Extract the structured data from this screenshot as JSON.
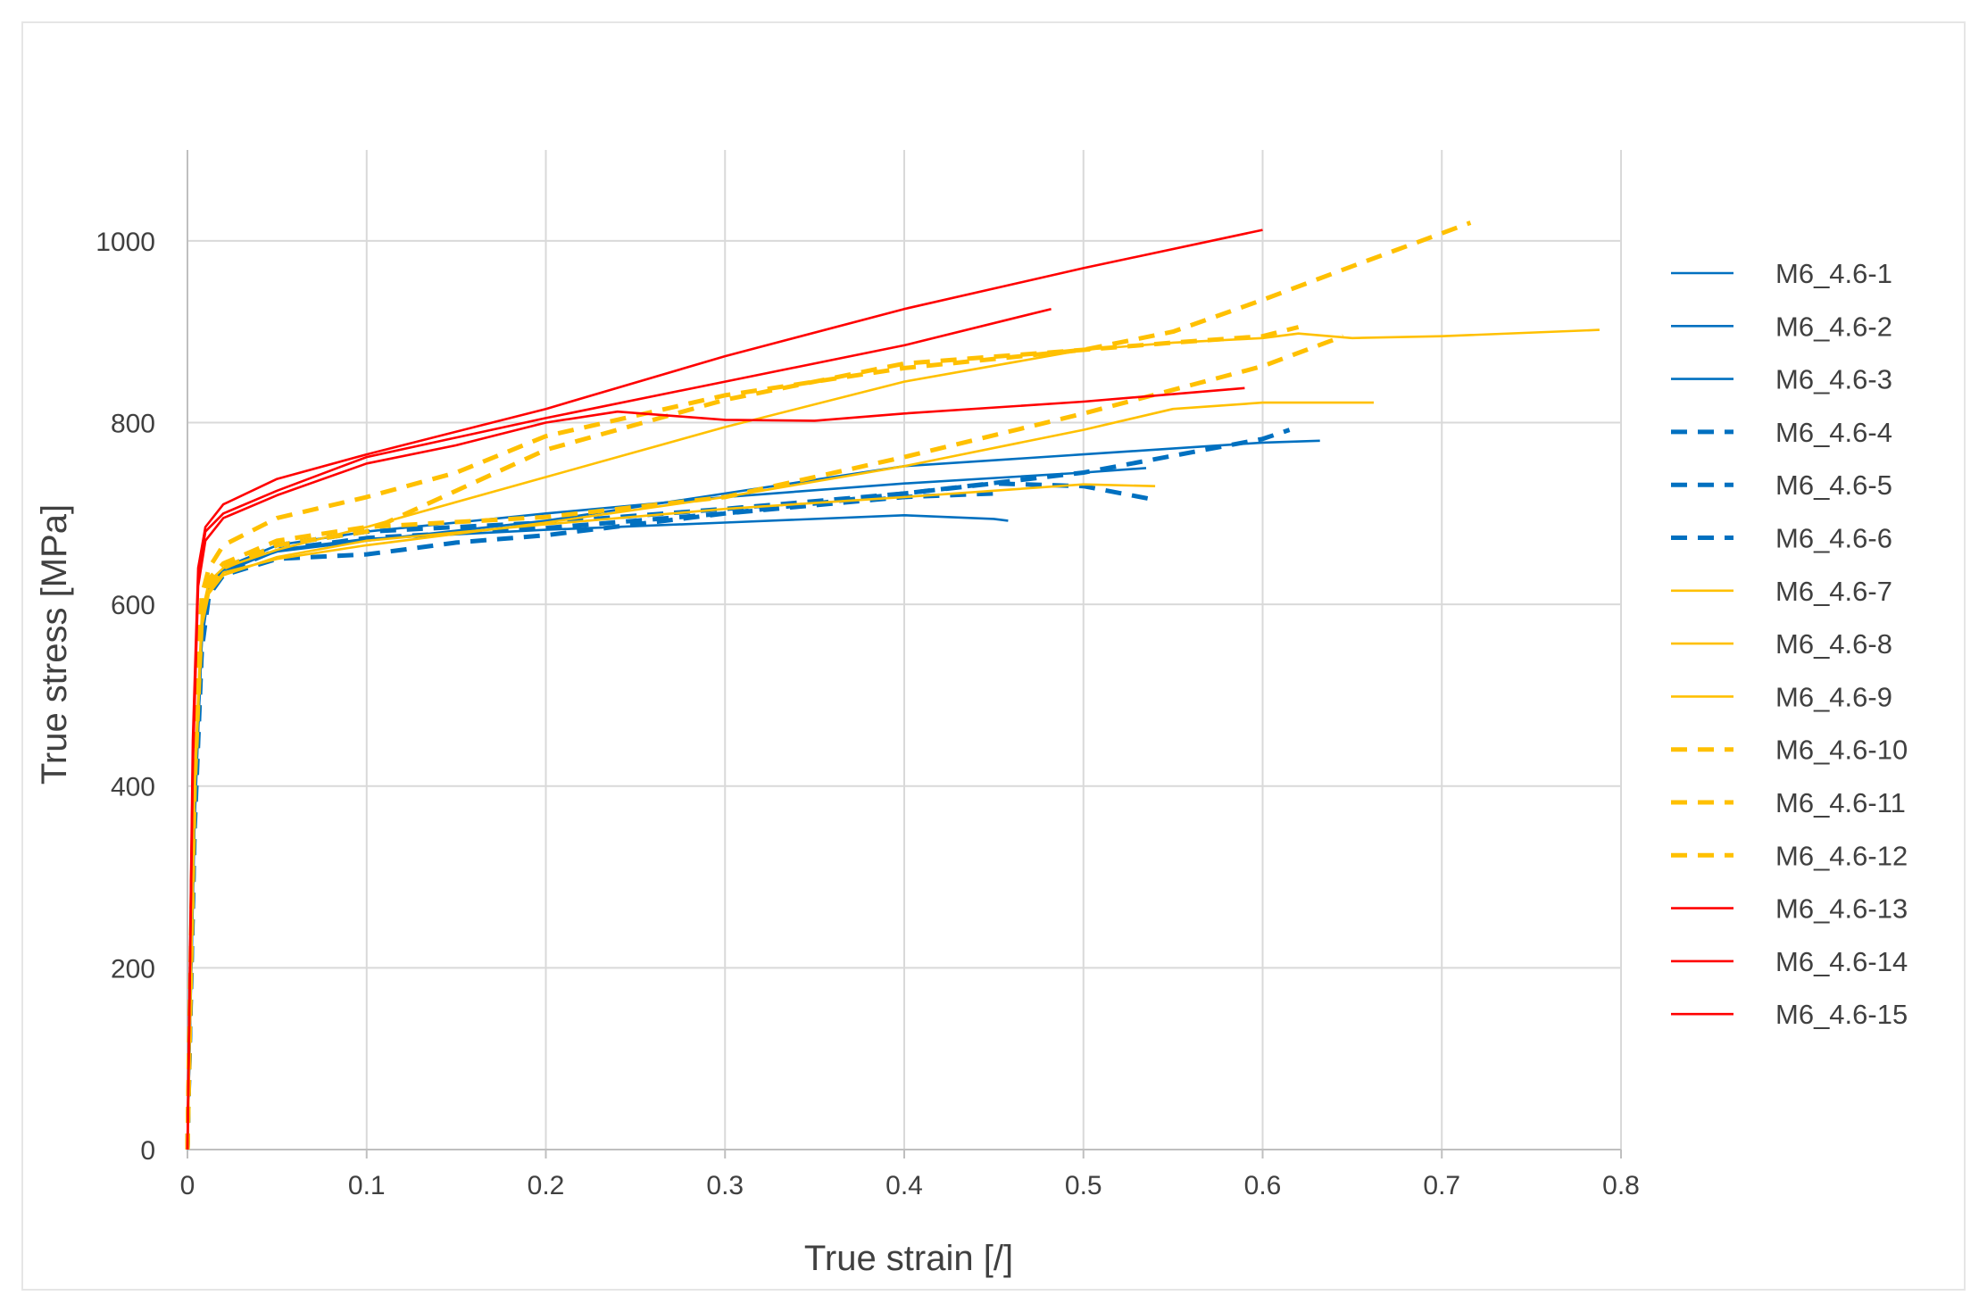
{
  "chart_data": {
    "type": "line",
    "title": "",
    "xlabel": "True strain [/]",
    "ylabel": "True stress  [MPa]",
    "xlim": [
      0,
      0.8
    ],
    "ylim": [
      0,
      1100
    ],
    "xticks": [
      0,
      0.1,
      0.2,
      0.3,
      0.4,
      0.5,
      0.6,
      0.7,
      0.8
    ],
    "xtick_labels": [
      "0",
      "0.1",
      "0.2",
      "0.3",
      "0.4",
      "0.5",
      "0.6",
      "0.7",
      "0.8"
    ],
    "yticks": [
      0,
      200,
      400,
      600,
      800,
      1000
    ],
    "ytick_labels": [
      "0",
      "200",
      "400",
      "600",
      "800",
      "1000"
    ],
    "grid": true,
    "legend_position": "right",
    "colors": {
      "blue": "#0070C0",
      "yellow": "#FFC000",
      "red": "#FF0000",
      "grid": "#d9d9d9",
      "axis": "#bfbfbf"
    },
    "series": [
      {
        "name": "M6_4.6-1",
        "color": "#0070C0",
        "dash": false,
        "x": [
          0,
          0.004,
          0.008,
          0.012,
          0.02,
          0.05,
          0.1,
          0.2,
          0.3,
          0.4,
          0.5,
          0.6,
          0.632
        ],
        "y": [
          0,
          380,
          570,
          620,
          638,
          658,
          670,
          692,
          722,
          752,
          765,
          778,
          780
        ]
      },
      {
        "name": "M6_4.6-2",
        "color": "#0070C0",
        "dash": false,
        "x": [
          0,
          0.004,
          0.008,
          0.012,
          0.02,
          0.05,
          0.1,
          0.2,
          0.3,
          0.4,
          0.45,
          0.458
        ],
        "y": [
          0,
          370,
          560,
          615,
          635,
          660,
          672,
          682,
          690,
          698,
          694,
          692
        ]
      },
      {
        "name": "M6_4.6-3",
        "color": "#0070C0",
        "dash": false,
        "x": [
          0,
          0.004,
          0.008,
          0.012,
          0.02,
          0.05,
          0.1,
          0.15,
          0.2,
          0.3,
          0.4,
          0.5,
          0.535
        ],
        "y": [
          0,
          360,
          560,
          618,
          640,
          665,
          680,
          690,
          700,
          718,
          733,
          745,
          750
        ]
      },
      {
        "name": "M6_4.6-4",
        "color": "#0070C0",
        "dash": true,
        "x": [
          0,
          0.004,
          0.008,
          0.012,
          0.02,
          0.05,
          0.1,
          0.2,
          0.3,
          0.4,
          0.5,
          0.6,
          0.615
        ],
        "y": [
          0,
          380,
          570,
          620,
          640,
          665,
          680,
          690,
          705,
          722,
          745,
          782,
          792
        ]
      },
      {
        "name": "M6_4.6-5",
        "color": "#0070C0",
        "dash": true,
        "x": [
          0,
          0.004,
          0.008,
          0.012,
          0.02,
          0.05,
          0.1,
          0.2,
          0.3,
          0.4,
          0.45,
          0.5,
          0.54
        ],
        "y": [
          0,
          360,
          555,
          612,
          635,
          660,
          673,
          684,
          700,
          722,
          733,
          730,
          715
        ]
      },
      {
        "name": "M6_4.6-6",
        "color": "#0070C0",
        "dash": true,
        "x": [
          0,
          0.004,
          0.008,
          0.012,
          0.02,
          0.05,
          0.1,
          0.12,
          0.15,
          0.2,
          0.3,
          0.4,
          0.45
        ],
        "y": [
          0,
          350,
          550,
          610,
          632,
          650,
          655,
          660,
          668,
          676,
          700,
          718,
          722
        ]
      },
      {
        "name": "M6_4.6-7",
        "color": "#FFC000",
        "dash": false,
        "x": [
          0,
          0.004,
          0.008,
          0.012,
          0.02,
          0.05,
          0.1,
          0.2,
          0.3,
          0.4,
          0.5,
          0.55,
          0.6,
          0.662
        ],
        "y": [
          0,
          400,
          580,
          615,
          635,
          650,
          665,
          690,
          718,
          752,
          792,
          815,
          822,
          822
        ]
      },
      {
        "name": "M6_4.6-8",
        "color": "#FFC000",
        "dash": false,
        "x": [
          0,
          0.004,
          0.008,
          0.012,
          0.02,
          0.05,
          0.1,
          0.2,
          0.3,
          0.4,
          0.5,
          0.55,
          0.6,
          0.62,
          0.65,
          0.7,
          0.788
        ],
        "y": [
          0,
          410,
          590,
          625,
          640,
          660,
          685,
          740,
          795,
          845,
          880,
          888,
          893,
          898,
          893,
          895,
          902
        ]
      },
      {
        "name": "M6_4.6-9",
        "color": "#FFC000",
        "dash": false,
        "x": [
          0,
          0.004,
          0.008,
          0.012,
          0.02,
          0.05,
          0.1,
          0.2,
          0.3,
          0.4,
          0.45,
          0.5,
          0.54
        ],
        "y": [
          0,
          390,
          575,
          612,
          632,
          652,
          670,
          688,
          705,
          718,
          725,
          732,
          730
        ]
      },
      {
        "name": "M6_4.6-10",
        "color": "#FFC000",
        "dash": true,
        "x": [
          0,
          0.004,
          0.008,
          0.012,
          0.02,
          0.05,
          0.1,
          0.15,
          0.2,
          0.3,
          0.4,
          0.5,
          0.55,
          0.6,
          0.65,
          0.716
        ],
        "y": [
          0,
          450,
          610,
          640,
          665,
          695,
          718,
          745,
          785,
          830,
          860,
          880,
          900,
          935,
          972,
          1020
        ]
      },
      {
        "name": "M6_4.6-11",
        "color": "#FFC000",
        "dash": true,
        "x": [
          0,
          0.004,
          0.008,
          0.012,
          0.02,
          0.05,
          0.1,
          0.2,
          0.3,
          0.4,
          0.5,
          0.6,
          0.645
        ],
        "y": [
          0,
          420,
          595,
          628,
          645,
          670,
          685,
          696,
          718,
          762,
          810,
          862,
          895
        ]
      },
      {
        "name": "M6_4.6-12",
        "color": "#FFC000",
        "dash": true,
        "x": [
          0,
          0.004,
          0.008,
          0.012,
          0.02,
          0.05,
          0.1,
          0.2,
          0.3,
          0.4,
          0.5,
          0.55,
          0.6,
          0.62
        ],
        "y": [
          0,
          400,
          585,
          620,
          640,
          665,
          680,
          770,
          825,
          865,
          880,
          888,
          895,
          905
        ]
      },
      {
        "name": "M6_4.6-13",
        "color": "#FF0000",
        "dash": false,
        "x": [
          0,
          0.003,
          0.006,
          0.01,
          0.02,
          0.05,
          0.1,
          0.2,
          0.3,
          0.4,
          0.5,
          0.6
        ],
        "y": [
          0,
          450,
          640,
          685,
          710,
          738,
          765,
          815,
          873,
          925,
          970,
          1012
        ]
      },
      {
        "name": "M6_4.6-14",
        "color": "#FF0000",
        "dash": false,
        "x": [
          0,
          0.003,
          0.006,
          0.01,
          0.02,
          0.05,
          0.1,
          0.2,
          0.3,
          0.4,
          0.482
        ],
        "y": [
          0,
          430,
          630,
          680,
          700,
          725,
          762,
          805,
          845,
          885,
          925
        ]
      },
      {
        "name": "M6_4.6-15",
        "color": "#FF0000",
        "dash": false,
        "x": [
          0,
          0.003,
          0.006,
          0.01,
          0.02,
          0.05,
          0.1,
          0.15,
          0.2,
          0.24,
          0.3,
          0.35,
          0.4,
          0.5,
          0.59
        ],
        "y": [
          0,
          420,
          620,
          670,
          695,
          720,
          755,
          775,
          800,
          812,
          803,
          802,
          810,
          823,
          838
        ]
      }
    ]
  }
}
